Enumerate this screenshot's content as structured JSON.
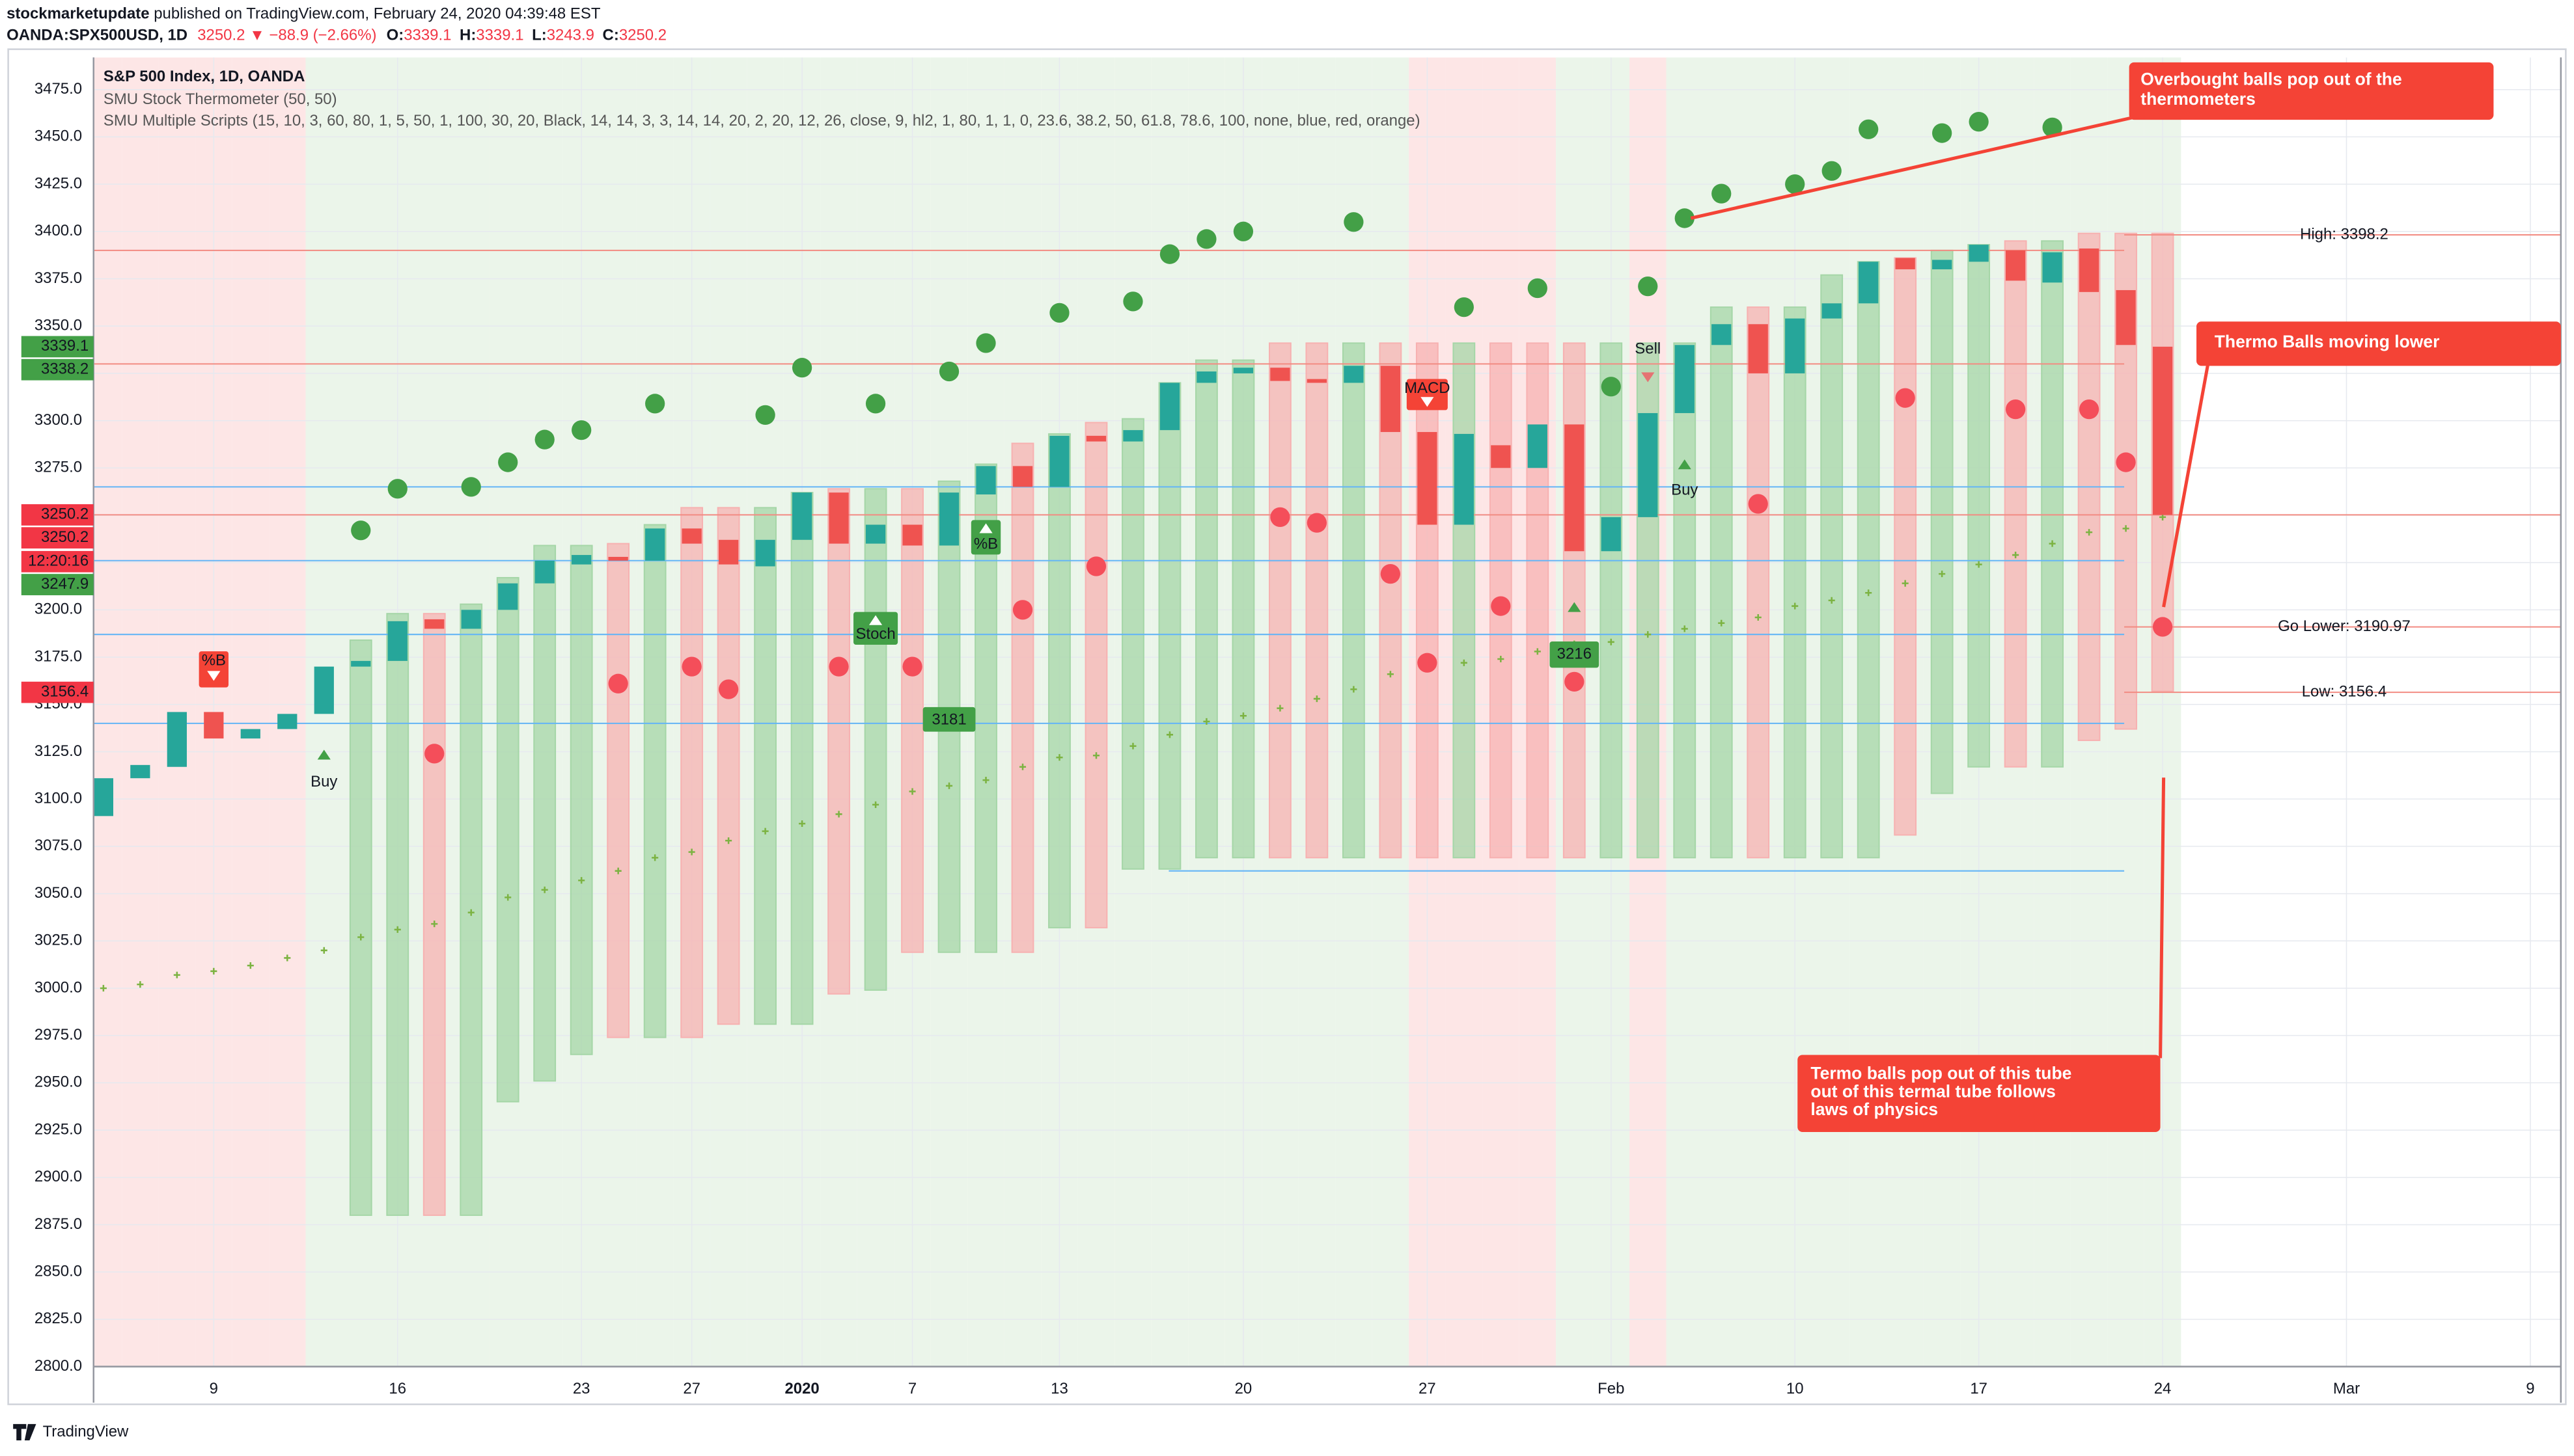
{
  "header": {
    "author": "stockmarketupdate",
    "published": " published on TradingView.com, February 24, 2020 04:39:48 EST",
    "symbol": "OANDA:SPX500USD, 1D",
    "change": "3250.2 ▼ −88.9 (−2.66%)",
    "ohlc": [
      {
        "key": "O:",
        "value": "3339.1"
      },
      {
        "key": "H:",
        "value": "3339.1"
      },
      {
        "key": "L:",
        "value": "3243.9"
      },
      {
        "key": "C:",
        "value": "3250.2"
      }
    ]
  },
  "footer": {
    "brand": "TradingView"
  },
  "chart_data": {
    "type": "candlestick",
    "categories": [
      null,
      null,
      null,
      "9",
      null,
      null,
      null,
      null,
      "16",
      null,
      null,
      null,
      null,
      "23",
      null,
      null,
      "27",
      null,
      null,
      "2020",
      null,
      null,
      "7",
      null,
      null,
      null,
      "13",
      null,
      null,
      null,
      null,
      "20",
      null,
      null,
      null,
      null,
      "27",
      null,
      null,
      null,
      null,
      "Feb",
      null,
      null,
      null,
      null,
      "10",
      null,
      null,
      null,
      null,
      "17",
      null,
      null,
      null,
      null,
      "24",
      null,
      null,
      null,
      null,
      "Mar",
      null,
      null,
      null,
      null,
      "9"
    ],
    "ylim": [
      2800,
      3492
    ],
    "yticks": [
      {
        "value": 2800,
        "label": "2800.0"
      },
      {
        "value": 2825,
        "label": "2825.0"
      },
      {
        "value": 2850,
        "label": "2850.0"
      },
      {
        "value": 2875,
        "label": "2875.0"
      },
      {
        "value": 2900,
        "label": "2900.0"
      },
      {
        "value": 2925,
        "label": "2925.0"
      },
      {
        "value": 2950,
        "label": "2950.0"
      },
      {
        "value": 2975,
        "label": "2975.0"
      },
      {
        "value": 3000,
        "label": "3000.0"
      },
      {
        "value": 3025,
        "label": "3025.0"
      },
      {
        "value": 3050,
        "label": "3050.0"
      },
      {
        "value": 3075,
        "label": "3075.0"
      },
      {
        "value": 3100,
        "label": "3100.0"
      },
      {
        "value": 3125,
        "label": "3125.0"
      },
      {
        "value": 3150,
        "label": "3150.0"
      },
      {
        "value": 3175,
        "label": "3175.0"
      },
      {
        "value": 3200,
        "label": "3200.0"
      },
      {
        "value": 3225,
        "label": "3225.0"
      },
      {
        "value": 3250,
        "label": "3250.0"
      },
      {
        "value": 3275,
        "label": "3275.0"
      },
      {
        "value": 3300,
        "label": "3300.0"
      },
      {
        "value": 3325,
        "label": "3325.0"
      },
      {
        "value": 3350,
        "label": "3350.0"
      },
      {
        "value": 3375,
        "label": "3375.0"
      },
      {
        "value": 3400,
        "label": "3400.0"
      },
      {
        "value": 3425,
        "label": "3425.0"
      },
      {
        "value": 3450,
        "label": "3450.0"
      },
      {
        "value": 3475,
        "label": "3475.0"
      }
    ],
    "grid": true,
    "background": [
      "#fde6e6",
      "#fde6e6",
      "#fde6e6",
      "#fde6e6",
      "#fde6e6",
      "#fde6e6",
      "#ebf5ea",
      "#ebf5ea",
      "#ebf5ea",
      "#ebf5ea",
      "#ebf5ea",
      "#ebf5ea",
      "#ebf5ea",
      "#ebf5ea",
      "#ebf5ea",
      "#ebf5ea",
      "#ebf5ea",
      "#ebf5ea",
      "#ebf5ea",
      "#ebf5ea",
      "#ebf5ea",
      "#ebf5ea",
      "#ebf5ea",
      "#ebf5ea",
      "#ebf5ea",
      "#ebf5ea",
      "#ebf5ea",
      "#ebf5ea",
      "#ebf5ea",
      "#ebf5ea",
      "#ebf5ea",
      "#ebf5ea",
      "#ebf5ea",
      "#ebf5ea",
      "#ebf5ea",
      "#ebf5ea",
      "#fde6e6",
      "#fde6e6",
      "#fde6e6",
      "#fde6e6",
      "#ebf5ea",
      "#ebf5ea",
      "#fde6e6",
      "#ebf5ea",
      "#ebf5ea",
      "#ebf5ea",
      "#ebf5ea",
      "#ebf5ea",
      "#ebf5ea",
      "#ebf5ea",
      "#ebf5ea",
      "#ebf5ea",
      "#ebf5ea",
      "#ebf5ea",
      "#ebf5ea",
      "#ebf5ea",
      "#ebf5ea",
      null,
      null,
      null,
      null,
      null,
      null,
      null,
      null,
      null,
      null
    ],
    "series": [
      {
        "name": "S&P 500 Index, 1D, OANDA",
        "up_color": "#26a69a",
        "down_color": "#ef5350",
        "open": [
          3091,
          3111,
          3117,
          3146,
          3132,
          3137,
          3145,
          3170,
          3173,
          3195,
          3190,
          3200,
          3214,
          3224,
          3228,
          3226,
          3243,
          3237,
          3223,
          3237,
          3262,
          3235,
          3245,
          3234,
          3261,
          3276,
          3265,
          3292,
          3289,
          3295,
          3320,
          3325,
          3328,
          3322,
          3320,
          3329,
          3294,
          3245,
          3287,
          3275,
          3298,
          3231,
          3249,
          3304,
          3340,
          3351,
          3325,
          3354,
          3362,
          3386,
          3380,
          3384,
          3390,
          3373,
          3391,
          3369,
          3339.1,
          null,
          null,
          null,
          null,
          null,
          null,
          null,
          null,
          null,
          null
        ],
        "close": [
          3111,
          3118,
          3146,
          3132,
          3137,
          3145,
          3170,
          3173,
          3194,
          3190,
          3200,
          3214,
          3226,
          3229,
          3226,
          3243,
          3235,
          3224,
          3237,
          3262,
          3235,
          3245,
          3234,
          3262,
          3276,
          3265,
          3292,
          3289,
          3295,
          3320,
          3326,
          3328,
          3321,
          3320,
          3329,
          3294,
          3245,
          3293,
          3275,
          3298,
          3231,
          3249,
          3304,
          3340,
          3351,
          3325,
          3354,
          3362,
          3384,
          3380,
          3385,
          3393,
          3374,
          3389,
          3368,
          3340,
          3250.2,
          null,
          null,
          null,
          null,
          null,
          null,
          null,
          null,
          null,
          null
        ]
      },
      {
        "name": "SMU Stock Thermometer (50, 50)",
        "top": [
          null,
          null,
          null,
          null,
          null,
          null,
          null,
          3184,
          3198,
          3198,
          3203,
          3217,
          3234,
          3234,
          3235,
          3245,
          3254,
          3254,
          3254,
          3262,
          3264,
          3264,
          3264,
          3268,
          3277,
          3288,
          3293,
          3299,
          3301,
          3320,
          3332,
          3332,
          3341,
          3341,
          3341,
          3341,
          3341,
          3341,
          3341,
          3341,
          3341,
          3341,
          3341,
          3341,
          3360,
          3360,
          3360,
          3377,
          3384,
          3386,
          3390,
          3393,
          3395,
          3395,
          3399,
          3399,
          3399,
          null,
          null,
          null,
          null,
          null,
          null,
          null,
          null,
          null,
          null
        ],
        "bottom": [
          null,
          null,
          null,
          null,
          null,
          null,
          null,
          2880,
          2880,
          2880,
          2880,
          2940,
          2951,
          2965,
          2974,
          2974,
          2974,
          2981,
          2981,
          2981,
          2997,
          2999,
          3019,
          3019,
          3019,
          3019,
          3032,
          3032,
          3063,
          3063,
          3069,
          3069,
          3069,
          3069,
          3069,
          3069,
          3069,
          3069,
          3069,
          3069,
          3069,
          3069,
          3069,
          3069,
          3069,
          3069,
          3069,
          3069,
          3069,
          3081,
          3103,
          3117,
          3117,
          3117,
          3131,
          3137,
          3157,
          null,
          null,
          null,
          null,
          null,
          null,
          null,
          null,
          null,
          null
        ],
        "colors": [
          null,
          null,
          null,
          null,
          null,
          null,
          null,
          "#a5d6a7",
          "#a5d6a7",
          "#f7b1b1",
          "#a5d6a7",
          "#a5d6a7",
          "#a5d6a7",
          "#a5d6a7",
          "#f7b1b1",
          "#a5d6a7",
          "#f7b1b1",
          "#f7b1b1",
          "#a5d6a7",
          "#a5d6a7",
          "#f7b1b1",
          "#a5d6a7",
          "#f7b1b1",
          "#a5d6a7",
          "#a5d6a7",
          "#f7b1b1",
          "#a5d6a7",
          "#f7b1b1",
          "#a5d6a7",
          "#a5d6a7",
          "#a5d6a7",
          "#a5d6a7",
          "#f7b1b1",
          "#f7b1b1",
          "#a5d6a7",
          "#f7b1b1",
          "#f7b1b1",
          "#a5d6a7",
          "#f7b1b1",
          "#f7b1b1",
          "#f7b1b1",
          "#a5d6a7",
          "#a5d6a7",
          "#a5d6a7",
          "#a5d6a7",
          "#f7b1b1",
          "#a5d6a7",
          "#a5d6a7",
          "#a5d6a7",
          "#f7b1b1",
          "#a5d6a7",
          "#a5d6a7",
          "#f7b1b1",
          "#a5d6a7",
          "#f7b1b1",
          "#f7b1b1",
          "#f7b1b1",
          null,
          null,
          null,
          null,
          null,
          null,
          null,
          null,
          null,
          null
        ]
      },
      {
        "name": "SMU Multiple Scripts (15, 10, 3, 60, 80, 1, 5, 50, 1, 100, 30, 20, Black, 14, 14, 3, 3, 14, 14, 20, 2, 20, 12, 26, close, 9, hl2, 1, 80, 1, 1, 0, 23.6, 38.2, 50, 61.8, 78.6, 100, none, blue, red, orange)",
        "overbought_color": "#43a047",
        "oversold_color": "#f44e5a",
        "average_color": "#7cb342",
        "overbought": [
          null,
          null,
          null,
          null,
          null,
          null,
          null,
          3242,
          3264,
          null,
          3265,
          3278,
          3290,
          3295,
          null,
          3309,
          null,
          null,
          3303,
          3328,
          null,
          3309,
          null,
          3326,
          3341,
          null,
          3357,
          null,
          3363,
          3388,
          3396,
          3400,
          null,
          null,
          3405,
          null,
          null,
          3360,
          null,
          3370,
          null,
          3318,
          3371,
          3407,
          3420,
          null,
          3425,
          3432,
          3454,
          null,
          3452,
          3458,
          null,
          3455,
          null,
          null,
          null,
          null,
          null,
          null,
          null,
          null,
          null,
          null,
          null,
          null,
          null
        ],
        "oversold": [
          null,
          null,
          null,
          null,
          null,
          null,
          null,
          null,
          null,
          3124,
          null,
          null,
          null,
          null,
          3161,
          null,
          3170,
          3158,
          null,
          null,
          3170,
          null,
          3170,
          null,
          null,
          3200,
          null,
          3223,
          null,
          null,
          null,
          null,
          3249,
          3246,
          null,
          3219,
          3172,
          null,
          3202,
          null,
          3162,
          null,
          null,
          null,
          null,
          3256,
          null,
          null,
          null,
          3312,
          null,
          null,
          3306,
          null,
          3306,
          3278,
          3191,
          null,
          null,
          null,
          null,
          null,
          null,
          null,
          null,
          null,
          null
        ],
        "average": [
          3000,
          3002,
          3007,
          3009,
          3012,
          3016,
          3020,
          3027,
          3031,
          3034,
          3040,
          3048,
          3052,
          3057,
          3062,
          3069,
          3072,
          3078,
          3083,
          3087,
          3092,
          3097,
          3104,
          3107,
          3110,
          3117,
          3122,
          3123,
          3128,
          3134,
          3141,
          3144,
          3148,
          3153,
          3158,
          3166,
          3170,
          3172,
          3174,
          3178,
          3182,
          3183,
          3187,
          3190,
          3193,
          3196,
          3202,
          3205,
          3209,
          3214,
          3219,
          3224,
          3229,
          3235,
          3241,
          3243,
          3249,
          null,
          null,
          null,
          null,
          null,
          null,
          null,
          null,
          null,
          null
        ]
      }
    ],
    "levels": [
      {
        "value": 3398.2,
        "color": "#f28b82",
        "label": "High: 3398.2"
      },
      {
        "value": 3390,
        "color": "#f28b82"
      },
      {
        "value": 3330,
        "color": "#f28b82"
      },
      {
        "value": 3265,
        "color": "#64b5f6"
      },
      {
        "value": 3250.2,
        "color": "#f28b82"
      },
      {
        "value": 3226,
        "color": "#64b5f6"
      },
      {
        "value": 3190.97,
        "color": "#f28b82",
        "label": "Go Lower: 3190.97"
      },
      {
        "value": 3187,
        "color": "#64b5f6"
      },
      {
        "value": 3156.4,
        "color": "#f28b82",
        "label": "Low: 3156.4"
      },
      {
        "value": 3140,
        "color": "#64b5f6"
      },
      {
        "value": 3062,
        "color": "#64b5f6"
      }
    ],
    "price_tags": [
      {
        "value": 3339.1,
        "color": "#43a047"
      },
      {
        "value": 3338.2,
        "color": "#43a047"
      },
      {
        "value": 3250.2,
        "color": "#f23645"
      },
      {
        "value": 3250.2,
        "color": "#f23645"
      },
      {
        "label": "12:20:16",
        "color": "#f23645"
      },
      {
        "value": 3247.9,
        "color": "#43a047"
      },
      {
        "value": 3156.4,
        "color": "#f23645"
      }
    ],
    "signals": [
      {
        "label": "%B",
        "color": "#f44336"
      },
      {
        "label": "Buy",
        "color": "#43a047"
      },
      {
        "label": "Stoch",
        "color": "#43a047"
      },
      {
        "label": "3181",
        "color": "#43a047"
      },
      {
        "label": "%B",
        "color": "#43a047"
      },
      {
        "label": "MACD",
        "color": "#f44336"
      },
      {
        "label": "3216",
        "color": "#43a047"
      },
      {
        "label": "Sell",
        "color": "#e57373"
      },
      {
        "label": "Buy",
        "color": "#43a047"
      }
    ],
    "annotations": [
      {
        "lines": [
          "Overbought balls pop out of the",
          "thermometers"
        ]
      },
      {
        "lines": [
          "Thermo Balls moving lower"
        ]
      },
      {
        "lines": [
          "Termo balls pop out of this tube",
          "out of this termal tube follows",
          "laws of physics"
        ]
      }
    ]
  }
}
